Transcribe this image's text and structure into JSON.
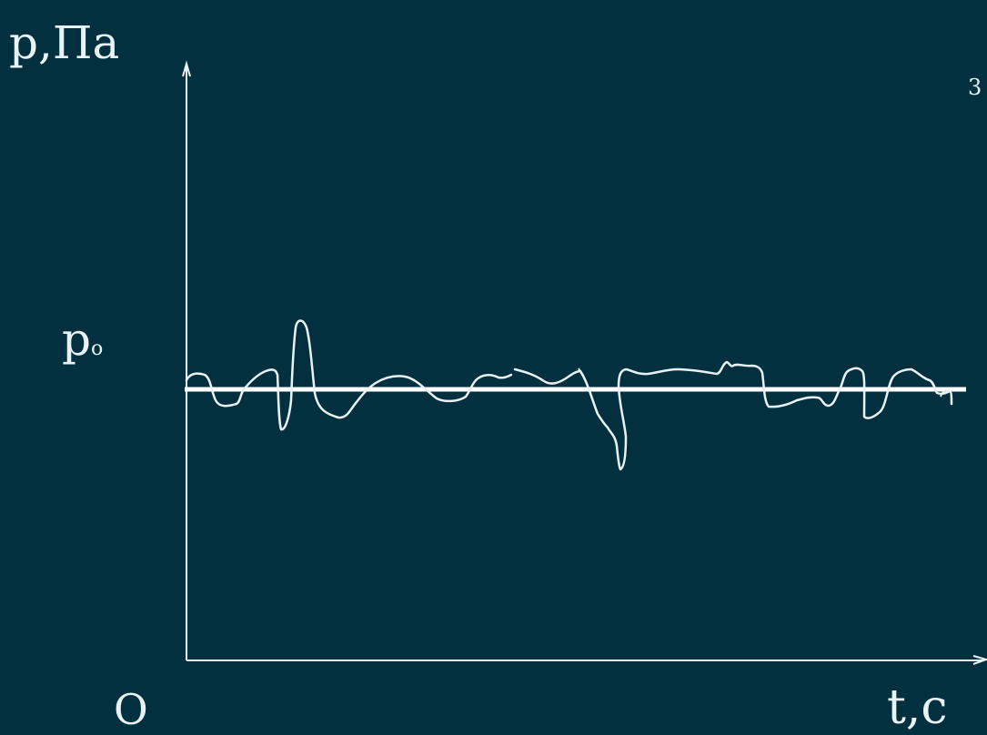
{
  "axes": {
    "y_label": "p,Па",
    "x_label": "t,c",
    "origin_label": "O"
  },
  "reference_level": {
    "label": "p",
    "subscript": "o"
  },
  "corner_mark": "3",
  "colors": {
    "background": "#03303f",
    "stroke": "#e9f3f5"
  }
}
